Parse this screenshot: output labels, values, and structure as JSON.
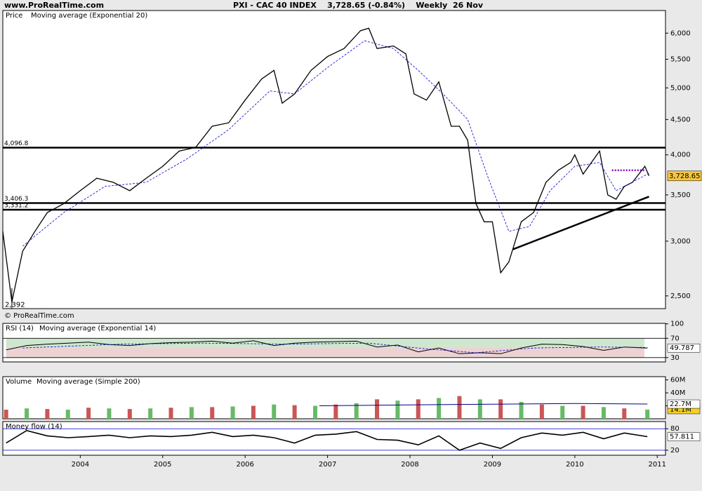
{
  "header": {
    "site": "www.ProRealTime.com",
    "title": "PXI - CAC 40 INDEX    3,728.65 (-0.84%)    Weekly  26 Nov",
    "copyright": "© ProRealTime.com"
  },
  "chart_data": [
    {
      "type": "line",
      "log_scale": true,
      "xlim": [
        2003.06,
        2011.1
      ],
      "ylim": [
        2396,
        6470
      ],
      "yticks": [
        {
          "value": 6000,
          "label": "6,000"
        },
        {
          "value": 5500,
          "label": "5,500"
        },
        {
          "value": 5000,
          "label": "5,000"
        },
        {
          "value": 4500,
          "label": "4,500"
        },
        {
          "value": 4000,
          "label": "4,000"
        },
        {
          "value": 3500,
          "label": "3,500"
        },
        {
          "value": 3000,
          "label": "3,000"
        },
        {
          "value": 2500,
          "label": "2,500"
        }
      ],
      "series": [
        {
          "name": "Price",
          "color": "#000000",
          "x": [
            2003.06,
            2003.17,
            2003.3,
            2003.45,
            2003.6,
            2003.8,
            2004.0,
            2004.2,
            2004.4,
            2004.6,
            2004.8,
            2005.0,
            2005.2,
            2005.4,
            2005.6,
            2005.8,
            2006.0,
            2006.2,
            2006.35,
            2006.45,
            2006.6,
            2006.8,
            2007.0,
            2007.2,
            2007.4,
            2007.5,
            2007.6,
            2007.8,
            2007.95,
            2008.05,
            2008.2,
            2008.35,
            2008.5,
            2008.6,
            2008.7,
            2008.8,
            2008.9,
            2009.0,
            2009.1,
            2009.2,
            2009.35,
            2009.5,
            2009.65,
            2009.8,
            2009.95,
            2010.0,
            2010.1,
            2010.3,
            2010.4,
            2010.5,
            2010.6,
            2010.7,
            2010.85,
            2010.9
          ],
          "values": [
            3100,
            2450,
            2900,
            3100,
            3300,
            3400,
            3550,
            3700,
            3650,
            3550,
            3700,
            3850,
            4050,
            4100,
            4400,
            4450,
            4800,
            5150,
            5300,
            4750,
            4900,
            5300,
            5550,
            5700,
            6050,
            6100,
            5700,
            5750,
            5600,
            4900,
            4800,
            5100,
            4400,
            4400,
            4200,
            3400,
            3200,
            3200,
            2700,
            2800,
            3200,
            3300,
            3650,
            3800,
            3900,
            4000,
            3750,
            4050,
            3500,
            3450,
            3600,
            3650,
            3850,
            3728.65
          ]
        },
        {
          "name": "Moving average (Exponential 20)",
          "color": "#0000cc",
          "x": [
            2003.3,
            2003.8,
            2004.3,
            2004.8,
            2005.3,
            2005.8,
            2006.3,
            2006.6,
            2007.0,
            2007.45,
            2007.8,
            2008.1,
            2008.4,
            2008.7,
            2008.95,
            2009.2,
            2009.45,
            2009.7,
            2010.0,
            2010.3,
            2010.5,
            2010.9
          ],
          "values": [
            2950,
            3300,
            3600,
            3650,
            3950,
            4350,
            4950,
            4900,
            5350,
            5850,
            5700,
            5300,
            4900,
            4500,
            3700,
            3100,
            3150,
            3550,
            3850,
            3900,
            3550,
            3760
          ]
        }
      ],
      "current": {
        "value": 3728.65,
        "label": "3,728.65"
      },
      "levels": [
        {
          "value": 4096.8,
          "label": "4,096.8"
        },
        {
          "value": 3406.3,
          "label": "3,406.3"
        },
        {
          "value": 3331.2,
          "label": "3,331.2"
        }
      ],
      "trendline": {
        "x": [
          2009.25,
          2010.9
        ],
        "values": [
          2920,
          3480
        ]
      },
      "resistance": {
        "x": [
          2010.45,
          2010.85
        ],
        "values": [
          3800,
          3800
        ]
      },
      "low": {
        "x": 2003.17,
        "value": 2392,
        "label": "2,392"
      }
    },
    {
      "type": "line",
      "xlim": [
        2003.06,
        2011.1
      ],
      "ylim": [
        21,
        101
      ],
      "yticks": [
        100,
        70,
        30
      ],
      "series": [
        {
          "name": "RSI (14)",
          "color": "#000000",
          "x": [
            2003.1,
            2003.35,
            2003.6,
            2003.85,
            2004.1,
            2004.35,
            2004.6,
            2004.85,
            2005.1,
            2005.35,
            2005.6,
            2005.85,
            2006.1,
            2006.35,
            2006.6,
            2006.85,
            2007.1,
            2007.35,
            2007.6,
            2007.85,
            2008.1,
            2008.35,
            2008.6,
            2008.85,
            2009.1,
            2009.35,
            2009.6,
            2009.85,
            2010.1,
            2010.35,
            2010.6,
            2010.88
          ],
          "values": [
            46,
            55,
            58,
            60,
            62,
            57,
            55,
            59,
            61,
            62,
            64,
            60,
            65,
            55,
            60,
            62,
            63,
            64,
            52,
            56,
            42,
            50,
            38,
            40,
            38,
            50,
            58,
            57,
            53,
            45,
            52,
            49.787
          ]
        },
        {
          "name": "Moving average (Exponential 14)",
          "color": "#0000cc",
          "x": [
            2003.3,
            2004.5,
            2005.5,
            2006.5,
            2007.5,
            2008.2,
            2008.8,
            2009.5,
            2010.3,
            2010.88
          ],
          "values": [
            50,
            58,
            60,
            58,
            60,
            48,
            40,
            50,
            52,
            51
          ]
        }
      ]
    },
    {
      "type": "bar",
      "xlim": [
        2003.06,
        2011.1
      ],
      "ylim": [
        0,
        65
      ],
      "yticks": [
        {
          "value": 60,
          "label": "60M"
        },
        {
          "value": 40,
          "label": "40M"
        },
        {
          "value": 20,
          "label": "20M"
        }
      ],
      "series": [
        {
          "name": "Volume",
          "color": "#cc5555",
          "x": [
            2003.1,
            2003.35,
            2003.6,
            2003.85,
            2004.1,
            2004.35,
            2004.6,
            2004.85,
            2005.1,
            2005.35,
            2005.6,
            2005.85,
            2006.1,
            2006.35,
            2006.6,
            2006.85,
            2007.1,
            2007.35,
            2007.6,
            2007.85,
            2008.1,
            2008.35,
            2008.6,
            2008.85,
            2009.1,
            2009.35,
            2009.6,
            2009.85,
            2010.1,
            2010.35,
            2010.6,
            2010.88
          ],
          "values": [
            14,
            16,
            15,
            14,
            17,
            16,
            15,
            16,
            17,
            18,
            18,
            19,
            20,
            22,
            21,
            20,
            22,
            24,
            30,
            28,
            30,
            32,
            35,
            30,
            30,
            26,
            22,
            20,
            20,
            18,
            16,
            14.1
          ],
          "last_label": "14.1M"
        },
        {
          "name": "Moving average (Simple 200)",
          "color": "#000088",
          "x": [
            2006.9,
            2008.0,
            2009.0,
            2010.0,
            2010.88
          ],
          "values": [
            20,
            21.5,
            22.5,
            23.5,
            22.7
          ],
          "last_label": "22.7M"
        }
      ]
    },
    {
      "type": "line",
      "xlim": [
        2003.06,
        2011.1
      ],
      "ylim": [
        6,
        100
      ],
      "yticks": [
        80,
        20
      ],
      "xticks": [
        2004,
        2005,
        2006,
        2007,
        2008,
        2009,
        2010,
        2011
      ],
      "series": [
        {
          "name": "Money flow (14)",
          "color": "#000000",
          "x": [
            2003.1,
            2003.35,
            2003.6,
            2003.85,
            2004.1,
            2004.35,
            2004.6,
            2004.85,
            2005.1,
            2005.35,
            2005.6,
            2005.85,
            2006.1,
            2006.35,
            2006.6,
            2006.85,
            2007.1,
            2007.35,
            2007.6,
            2007.85,
            2008.1,
            2008.35,
            2008.6,
            2008.85,
            2009.1,
            2009.35,
            2009.6,
            2009.85,
            2010.1,
            2010.35,
            2010.6,
            2010.88
          ],
          "values": [
            40,
            75,
            60,
            55,
            58,
            62,
            55,
            60,
            58,
            62,
            70,
            58,
            62,
            55,
            40,
            62,
            65,
            72,
            50,
            48,
            35,
            60,
            20,
            40,
            25,
            55,
            68,
            62,
            70,
            52,
            68,
            57.811
          ]
        }
      ]
    }
  ]
}
